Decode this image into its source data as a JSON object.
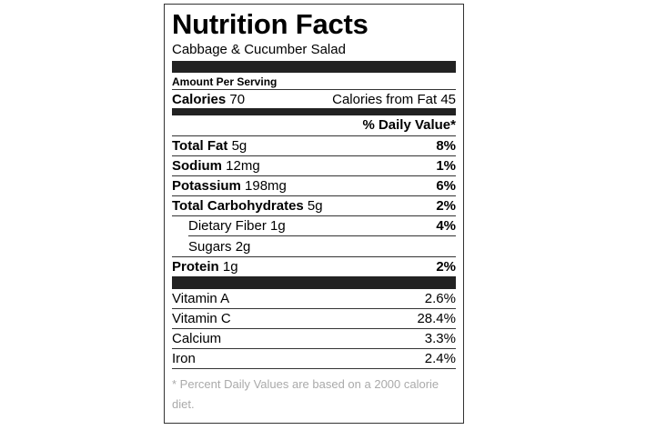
{
  "label": {
    "title": "Nutrition Facts",
    "product": "Cabbage & Cucumber Salad",
    "amount_per_serving": "Amount Per Serving",
    "calories": {
      "label": "Calories",
      "value": "70",
      "from_fat_label": "Calories from Fat",
      "from_fat_value": "45"
    },
    "daily_value_header": "% Daily Value*",
    "nutrients": [
      {
        "name": "Total Fat",
        "amount": "5g",
        "pct": "8%"
      },
      {
        "name": "Sodium",
        "amount": "12mg",
        "pct": "1%"
      },
      {
        "name": "Potassium",
        "amount": "198mg",
        "pct": "6%"
      },
      {
        "name": "Total Carbohydrates",
        "amount": "5g",
        "pct": "2%"
      },
      {
        "name": "Dietary Fiber",
        "amount": "1g",
        "pct": "4%"
      },
      {
        "name": "Sugars",
        "amount": "2g",
        "pct": ""
      },
      {
        "name": "Protein",
        "amount": "1g",
        "pct": "2%"
      }
    ],
    "vitamins": [
      {
        "name": "Vitamin A",
        "pct": "2.6%"
      },
      {
        "name": "Vitamin C",
        "pct": "28.4%"
      },
      {
        "name": "Calcium",
        "pct": "3.3%"
      },
      {
        "name": "Iron",
        "pct": "2.4%"
      }
    ],
    "footnote": "* Percent Daily Values are based on a 2000 calorie diet."
  }
}
